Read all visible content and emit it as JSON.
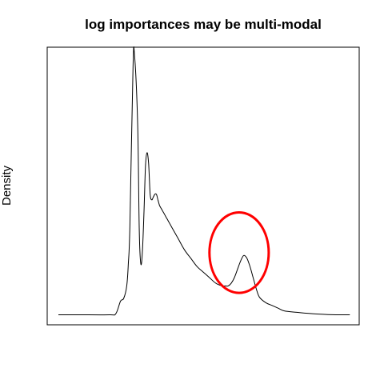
{
  "chart_data": {
    "type": "line",
    "title": "log importances may be multi-modal",
    "xlabel": "",
    "ylabel": "Density",
    "xlim": [
      0,
      1
    ],
    "ylim": [
      0,
      1
    ],
    "axes_ticks_shown": false,
    "grid": false,
    "line_color": "#000000",
    "annotation": {
      "shape": "ellipse",
      "color": "#ff0000",
      "center": [
        0.615,
        0.26
      ],
      "radius": [
        0.095,
        0.145
      ]
    },
    "series": [
      {
        "x": [
          0.036,
          0.1,
          0.2,
          0.22,
          0.235,
          0.245,
          0.255,
          0.26,
          0.265,
          0.275,
          0.28,
          0.29,
          0.295,
          0.3,
          0.305,
          0.31,
          0.315,
          0.32,
          0.325,
          0.33,
          0.335,
          0.34,
          0.345,
          0.35,
          0.355,
          0.36,
          0.365,
          0.37,
          0.375,
          0.38,
          0.385,
          0.39,
          0.4,
          0.42,
          0.44,
          0.46,
          0.48,
          0.5,
          0.52,
          0.54,
          0.56,
          0.57,
          0.58,
          0.59,
          0.6,
          0.61,
          0.62,
          0.63,
          0.64,
          0.65,
          0.66,
          0.67,
          0.68,
          0.7,
          0.72,
          0.74,
          0.76,
          0.8,
          0.85,
          0.9,
          0.95,
          0.97
        ],
        "y": [
          0.036,
          0.036,
          0.036,
          0.04,
          0.085,
          0.095,
          0.14,
          0.22,
          0.36,
          0.93,
          0.97,
          0.72,
          0.34,
          0.22,
          0.26,
          0.4,
          0.57,
          0.62,
          0.58,
          0.47,
          0.45,
          0.46,
          0.47,
          0.47,
          0.45,
          0.43,
          0.42,
          0.41,
          0.4,
          0.39,
          0.38,
          0.37,
          0.35,
          0.31,
          0.27,
          0.24,
          0.21,
          0.19,
          0.17,
          0.15,
          0.14,
          0.14,
          0.14,
          0.15,
          0.17,
          0.2,
          0.23,
          0.25,
          0.24,
          0.21,
          0.17,
          0.13,
          0.1,
          0.08,
          0.07,
          0.06,
          0.05,
          0.045,
          0.04,
          0.037,
          0.036,
          0.036
        ]
      }
    ]
  }
}
